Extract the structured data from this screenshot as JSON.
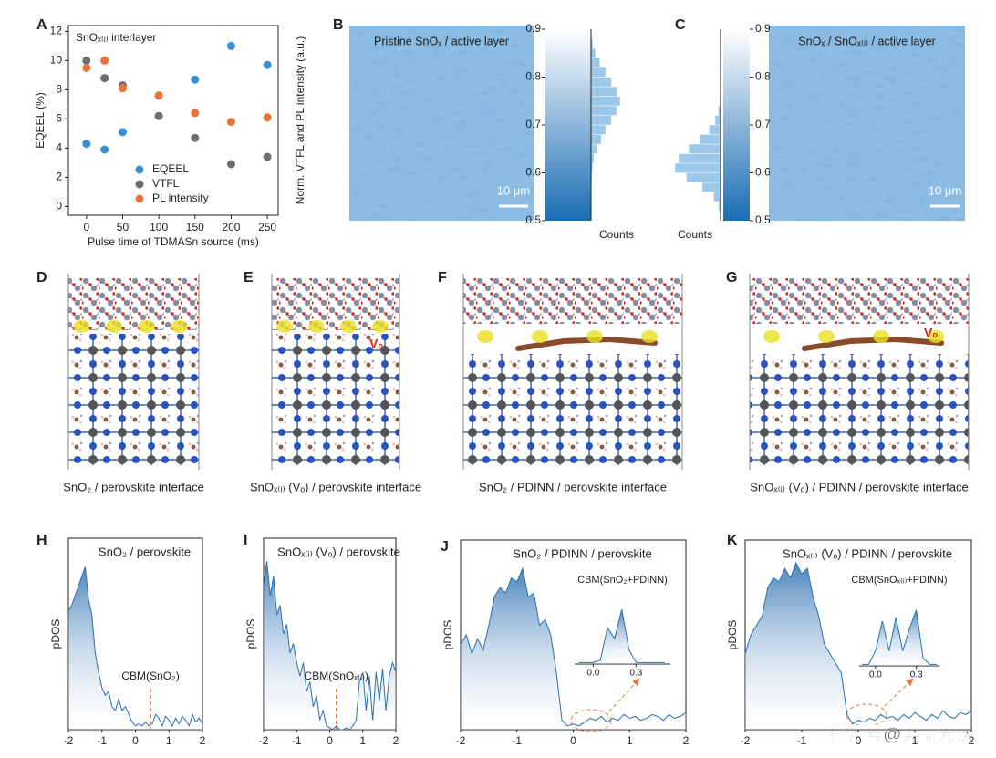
{
  "chart_data": [
    {
      "type": "scatter",
      "panel": "A",
      "title": "SnOₓ₍ᵢ₎ interlayer",
      "xlabel": "Pulse time of TDMASn source (ms)",
      "ylabel": "EQEEL (%)",
      "y2label": "Norm. VTFL and PL intensity (a.u.)",
      "xlim": [
        -25,
        265
      ],
      "ylim": [
        -0.6,
        12.4
      ],
      "xticks": [
        0,
        50,
        100,
        150,
        200,
        250
      ],
      "yticks": [
        0,
        2,
        4,
        6,
        8,
        10,
        12
      ],
      "legend": "lower center",
      "x": [
        0,
        25,
        50,
        100,
        150,
        200,
        250
      ],
      "series": [
        {
          "name": "EQEEL",
          "color": "#3a8fd0",
          "values": [
            4.3,
            3.9,
            5.1,
            7.6,
            8.7,
            11.0,
            9.7
          ]
        },
        {
          "name": "VTFL",
          "color": "#6e6e6e",
          "values": [
            10.0,
            8.8,
            8.3,
            6.2,
            4.7,
            2.9,
            3.4
          ]
        },
        {
          "name": "PL intensity",
          "color": "#e8743b",
          "values": [
            9.5,
            10.0,
            8.1,
            7.6,
            6.4,
            5.8,
            6.1
          ]
        }
      ]
    },
    {
      "type": "histogram",
      "panel": "B",
      "image_label": "Pristine SnOₓ / active layer",
      "scale_bar": "10 μm",
      "xlabel": "Counts",
      "direction": "right",
      "color": "#9cc8ea",
      "bins": [
        0.5,
        0.52,
        0.54,
        0.56,
        0.58,
        0.6,
        0.62,
        0.64,
        0.66,
        0.68,
        0.7,
        0.72,
        0.74,
        0.76,
        0.78,
        0.8,
        0.82,
        0.84,
        0.86,
        0.88,
        0.9
      ],
      "values": [
        0,
        0,
        1,
        2,
        3,
        5,
        10,
        20,
        35,
        50,
        70,
        88,
        100,
        90,
        70,
        50,
        30,
        15,
        6,
        2
      ],
      "xlim": [
        0,
        100
      ],
      "ylim": [
        0.5,
        0.9
      ],
      "yticks": [
        0.5,
        0.6,
        0.7,
        0.8,
        0.9
      ]
    },
    {
      "type": "histogram",
      "panel": "C",
      "image_label": "SnOₓ / SnOₓ₍ᵢ₎ / active layer",
      "scale_bar": "10 μm",
      "xlabel": "Counts",
      "direction": "left",
      "color": "#9cc8ea",
      "bins": [
        0.5,
        0.52,
        0.54,
        0.56,
        0.58,
        0.6,
        0.62,
        0.64,
        0.66,
        0.68,
        0.7,
        0.72,
        0.74,
        0.76,
        0.78,
        0.8,
        0.82,
        0.84,
        0.86,
        0.88,
        0.9
      ],
      "values": [
        1,
        4,
        15,
        40,
        75,
        100,
        92,
        70,
        45,
        25,
        12,
        5,
        2,
        1,
        0,
        0,
        0,
        0,
        0,
        0
      ],
      "xlim": [
        0,
        100
      ],
      "ylim": [
        0.5,
        0.9
      ],
      "yticks": [
        0.5,
        0.6,
        0.7,
        0.8,
        0.9
      ]
    },
    {
      "type": "line",
      "panel": "H",
      "title": "SnO₂ / perovskite",
      "ylabel": "pDOS",
      "color": "#2a6fb0",
      "xlim": [
        -2,
        2
      ],
      "ylim": [
        0,
        1
      ],
      "xticks": [
        -2,
        -1,
        0,
        1,
        2
      ],
      "annotation": {
        "text": "CBM(SnO₂)",
        "x": 0.45
      },
      "x": [
        -2,
        -1.9,
        -1.8,
        -1.7,
        -1.6,
        -1.5,
        -1.4,
        -1.3,
        -1.2,
        -1.1,
        -1,
        -0.9,
        -0.8,
        -0.7,
        -0.6,
        -0.5,
        -0.4,
        -0.3,
        -0.2,
        -0.1,
        0,
        0.1,
        0.2,
        0.3,
        0.4,
        0.5,
        0.6,
        0.7,
        0.8,
        0.9,
        1,
        1.1,
        1.2,
        1.3,
        1.4,
        1.5,
        1.6,
        1.7,
        1.8,
        1.9,
        2
      ],
      "values": [
        0.62,
        0.65,
        0.7,
        0.75,
        0.8,
        0.85,
        0.68,
        0.6,
        0.4,
        0.3,
        0.22,
        0.18,
        0.2,
        0.12,
        0.1,
        0.16,
        0.1,
        0.12,
        0.08,
        0.04,
        0.02,
        0.03,
        0.02,
        0.04,
        0.02,
        0.03,
        0.08,
        0.06,
        0.02,
        0.07,
        0.05,
        0.02,
        0.06,
        0.03,
        0.07,
        0.05,
        0.02,
        0.08,
        0.04,
        0.06,
        0.03
      ]
    },
    {
      "type": "line",
      "panel": "I",
      "title": "SnOₓ₍ᵢ₎ (Vₒ) / perovskite",
      "ylabel": "pDOS",
      "color": "#2a6fb0",
      "xlim": [
        -2,
        2
      ],
      "ylim": [
        0,
        1
      ],
      "xticks": [
        -2,
        -1,
        0,
        1,
        2
      ],
      "annotation": {
        "text": "CBM(SnOₓ₍ᵢ₎)",
        "x": 0.2
      },
      "x": [
        -2,
        -1.9,
        -1.8,
        -1.7,
        -1.6,
        -1.5,
        -1.4,
        -1.3,
        -1.2,
        -1.1,
        -1,
        -0.9,
        -0.8,
        -0.7,
        -0.6,
        -0.5,
        -0.4,
        -0.3,
        -0.2,
        -0.1,
        0,
        0.1,
        0.2,
        0.3,
        0.4,
        0.5,
        0.6,
        0.7,
        0.8,
        0.9,
        1,
        1.1,
        1.2,
        1.3,
        1.4,
        1.5,
        1.6,
        1.7,
        1.8,
        1.9,
        2
      ],
      "values": [
        0.75,
        0.88,
        0.7,
        0.8,
        0.6,
        0.65,
        0.5,
        0.55,
        0.4,
        0.45,
        0.35,
        0.28,
        0.35,
        0.2,
        0.25,
        0.12,
        0.18,
        0.05,
        0.1,
        0.02,
        0.01,
        0,
        0.02,
        0,
        0,
        0.01,
        0,
        0.02,
        0.05,
        0.25,
        0.3,
        0.1,
        0.28,
        0.05,
        0.3,
        0.15,
        0.32,
        0.1,
        0.28,
        0.35,
        0.3
      ]
    },
    {
      "type": "line",
      "panel": "J",
      "title": "SnO₂ / PDINN / perovskite",
      "ylabel": "pDOS",
      "color": "#2a6fb0",
      "xlim": [
        -2,
        2
      ],
      "ylim": [
        0,
        1
      ],
      "xticks": [
        -2,
        -1,
        0,
        1,
        2
      ],
      "x": [
        -2,
        -1.9,
        -1.8,
        -1.7,
        -1.6,
        -1.5,
        -1.4,
        -1.3,
        -1.2,
        -1.1,
        -1,
        -0.9,
        -0.8,
        -0.7,
        -0.6,
        -0.5,
        -0.4,
        -0.3,
        -0.2,
        -0.1,
        0,
        0.1,
        0.2,
        0.3,
        0.4,
        0.5,
        0.6,
        0.7,
        0.8,
        0.9,
        1,
        1.1,
        1.2,
        1.3,
        1.4,
        1.5,
        1.6,
        1.7,
        1.8,
        1.9,
        2
      ],
      "values": [
        0.45,
        0.5,
        0.4,
        0.48,
        0.42,
        0.55,
        0.7,
        0.75,
        0.72,
        0.8,
        0.78,
        0.85,
        0.7,
        0.72,
        0.55,
        0.58,
        0.5,
        0.3,
        0.05,
        0.02,
        0.03,
        0.02,
        0.04,
        0.06,
        0.05,
        0.07,
        0.04,
        0.06,
        0.05,
        0.08,
        0.06,
        0.07,
        0.05,
        0.06,
        0.08,
        0.07,
        0.05,
        0.08,
        0.06,
        0.07,
        0.09
      ]
    },
    {
      "type": "line",
      "title": "CBM(SnO₂+PDINN)",
      "color": "#2a6fb0",
      "xlim": [
        -0.13,
        0.54
      ],
      "ylim": [
        0,
        1
      ],
      "xticks": [
        {
          "value": 0,
          "label": "0.0"
        },
        0.3
      ],
      "x": [
        -0.1,
        -0.05,
        0,
        0.05,
        0.1,
        0.15,
        0.2,
        0.25,
        0.3,
        0.35,
        0.4,
        0.45,
        0.5
      ],
      "values": [
        0.02,
        0.02,
        0.02,
        0.05,
        0.5,
        0.35,
        0.75,
        0.2,
        0.02,
        0.02,
        0.02,
        0.02,
        0.02
      ]
    },
    {
      "type": "line",
      "panel": "K",
      "title": "SnOₓ₍ᵢ₎ (Vₒ) / PDINN / perovskite",
      "ylabel": "pDOS",
      "color": "#2a6fb0",
      "xlim": [
        -2,
        2
      ],
      "ylim": [
        0,
        1
      ],
      "xticks": [
        -2,
        -1,
        0,
        1,
        2
      ],
      "x": [
        -2,
        -1.9,
        -1.8,
        -1.7,
        -1.6,
        -1.5,
        -1.4,
        -1.3,
        -1.2,
        -1.1,
        -1,
        -0.9,
        -0.8,
        -0.7,
        -0.6,
        -0.5,
        -0.4,
        -0.3,
        -0.2,
        -0.1,
        0,
        0.1,
        0.2,
        0.3,
        0.4,
        0.5,
        0.6,
        0.7,
        0.8,
        0.9,
        1,
        1.1,
        1.2,
        1.3,
        1.4,
        1.5,
        1.6,
        1.7,
        1.8,
        1.9,
        2
      ],
      "values": [
        0.4,
        0.5,
        0.55,
        0.6,
        0.75,
        0.8,
        0.78,
        0.85,
        0.8,
        0.88,
        0.82,
        0.85,
        0.7,
        0.6,
        0.45,
        0.4,
        0.35,
        0.3,
        0.08,
        0.03,
        0.05,
        0.04,
        0.06,
        0.05,
        0.08,
        0.06,
        0.07,
        0.05,
        0.08,
        0.06,
        0.09,
        0.07,
        0.05,
        0.08,
        0.06,
        0.1,
        0.07,
        0.06,
        0.09,
        0.08,
        0.1
      ]
    },
    {
      "type": "line",
      "title": "CBM(SnOₓ₍ᵢ₎+PDINN)",
      "color": "#2a6fb0",
      "xlim": [
        -0.12,
        0.47
      ],
      "ylim": [
        0,
        1
      ],
      "xticks": [
        {
          "value": 0,
          "label": "0.0"
        },
        0.3
      ],
      "x": [
        -0.1,
        -0.05,
        0,
        0.05,
        0.1,
        0.15,
        0.2,
        0.25,
        0.3,
        0.35,
        0.4,
        0.45
      ],
      "values": [
        0.02,
        0.02,
        0.2,
        0.6,
        0.2,
        0.65,
        0.2,
        0.5,
        0.75,
        0.1,
        0.02,
        0.02
      ]
    }
  ],
  "structures": [
    {
      "panel": "D",
      "caption": "SnO₂ / perovskite interface"
    },
    {
      "panel": "E",
      "caption": "SnOₓ₍ᵢ₎ (Vₒ) / perovskite interface",
      "label": "Vₒ"
    },
    {
      "panel": "F",
      "caption": "SnO₂ / PDINN / perovskite interface"
    },
    {
      "panel": "G",
      "caption": "SnOₓ₍ᵢ₎ (Vₒ) / PDINN / perovskite interface",
      "label": "Vₒ"
    }
  ],
  "watermark": "搜狐号@美能光伏"
}
